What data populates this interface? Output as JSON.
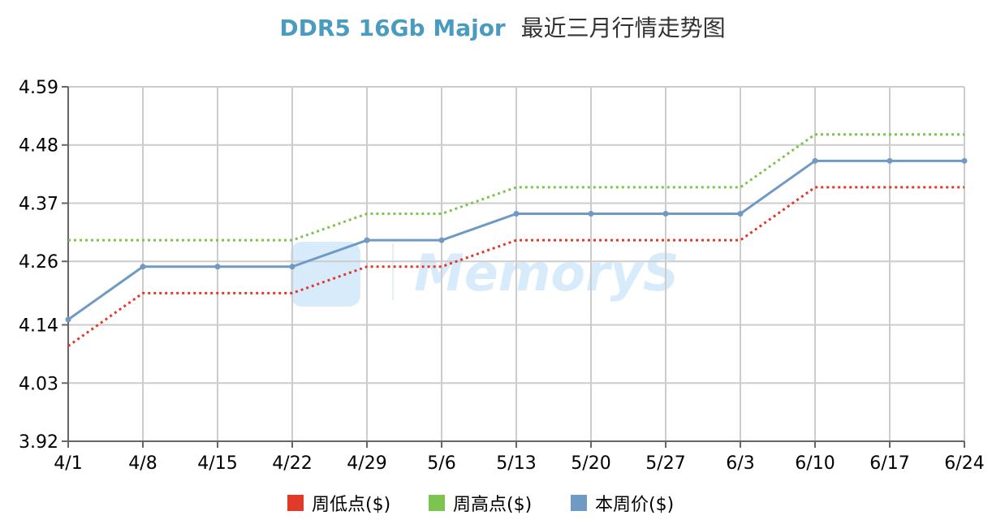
{
  "chart_data": {
    "type": "line",
    "title": {
      "main": "DDR5 16Gb Major",
      "sub": "最近三月行情走势图",
      "main_color": "#4a9bc0",
      "sub_color": "#333333"
    },
    "categories": [
      "4/1",
      "4/8",
      "4/15",
      "4/22",
      "4/29",
      "5/6",
      "5/13",
      "5/20",
      "5/27",
      "6/3",
      "6/10",
      "6/17",
      "6/24"
    ],
    "y_ticks": [
      "3.92",
      "4.03",
      "4.14",
      "4.26",
      "4.37",
      "4.48",
      "4.59"
    ],
    "ylim": [
      3.92,
      4.59
    ],
    "grid": true,
    "legend_position": "bottom-center",
    "series": [
      {
        "name": "周低点($)",
        "color": "#e03a2a",
        "style": "dotted",
        "values": [
          4.1,
          4.2,
          4.2,
          4.2,
          4.25,
          4.25,
          4.3,
          4.3,
          4.3,
          4.3,
          4.4,
          4.4,
          4.4
        ]
      },
      {
        "name": "周高点($)",
        "color": "#7cc44f",
        "style": "dotted",
        "values": [
          4.3,
          4.3,
          4.3,
          4.3,
          4.35,
          4.35,
          4.4,
          4.4,
          4.4,
          4.4,
          4.5,
          4.5,
          4.5
        ]
      },
      {
        "name": "本周价($)",
        "color": "#6f9ac4",
        "style": "solid",
        "values": [
          4.15,
          4.25,
          4.25,
          4.25,
          4.3,
          4.3,
          4.35,
          4.35,
          4.35,
          4.35,
          4.45,
          4.45,
          4.45
        ]
      }
    ],
    "watermark": "MemoryS"
  }
}
